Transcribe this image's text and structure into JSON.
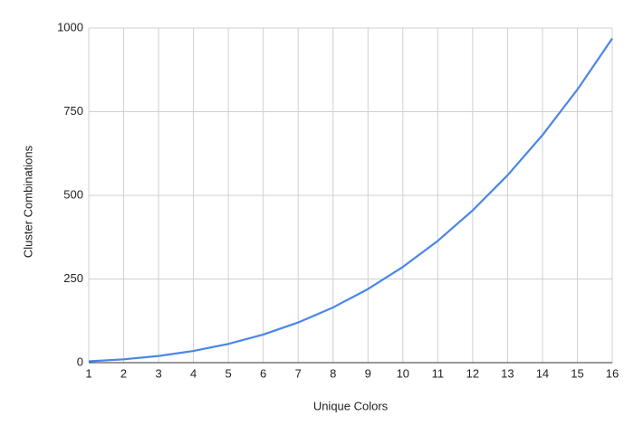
{
  "chart_data": {
    "type": "line",
    "xlabel": "Unique Colors",
    "ylabel": "Cluster Combinations",
    "x": [
      1,
      2,
      3,
      4,
      5,
      6,
      7,
      8,
      9,
      10,
      11,
      12,
      13,
      14,
      15,
      16
    ],
    "series": [
      {
        "name": "Cluster Combinations",
        "color": "#4a86e8",
        "values": [
          4,
          10,
          20,
          35,
          56,
          84,
          120,
          165,
          220,
          286,
          364,
          455,
          560,
          680,
          816,
          969
        ]
      }
    ],
    "xlim": [
      1,
      16
    ],
    "xticks": [
      1,
      2,
      3,
      4,
      5,
      6,
      7,
      8,
      9,
      10,
      11,
      12,
      13,
      14,
      15,
      16
    ],
    "ylim": [
      0,
      1000
    ],
    "yticks": [
      0,
      250,
      500,
      750,
      1000
    ],
    "grid": true
  }
}
